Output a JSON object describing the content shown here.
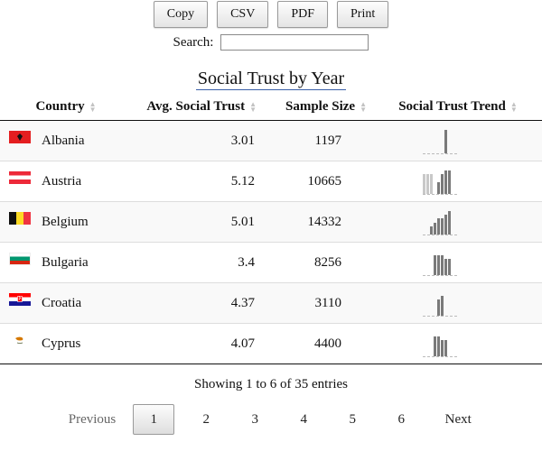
{
  "toolbar": {
    "copy": "Copy",
    "csv": "CSV",
    "pdf": "PDF",
    "print": "Print"
  },
  "search": {
    "label": "Search:",
    "value": ""
  },
  "table": {
    "caption": "Social Trust by Year",
    "headers": [
      "Country",
      "Avg. Social Trust",
      "Sample Size",
      "Social Trust Trend"
    ],
    "rows": [
      {
        "country": "Albania",
        "flag": "albania-flag",
        "avg": "3.01",
        "sample": "1197",
        "trend": [
          0,
          0,
          0,
          0,
          0,
          0,
          6,
          0
        ],
        "light": []
      },
      {
        "country": "Austria",
        "flag": "austria-flag",
        "avg": "5.12",
        "sample": "10665",
        "trend": [
          5,
          5,
          5,
          0,
          3,
          5,
          6,
          6
        ],
        "light": [
          0,
          1,
          2
        ]
      },
      {
        "country": "Belgium",
        "flag": "belgium-flag",
        "avg": "5.01",
        "sample": "14332",
        "trend": [
          0,
          0,
          2,
          3,
          4,
          4,
          5,
          6
        ],
        "light": []
      },
      {
        "country": "Bulgaria",
        "flag": "bulgaria-flag",
        "avg": "3.4",
        "sample": "8256",
        "trend": [
          0,
          0,
          0,
          5,
          5,
          5,
          4,
          4
        ],
        "light": []
      },
      {
        "country": "Croatia",
        "flag": "croatia-flag",
        "avg": "4.37",
        "sample": "3110",
        "trend": [
          0,
          0,
          0,
          0,
          4,
          5,
          0,
          0
        ],
        "light": []
      },
      {
        "country": "Cyprus",
        "flag": "cyprus-flag",
        "avg": "4.07",
        "sample": "4400",
        "trend": [
          0,
          0,
          0,
          5,
          5,
          4,
          4,
          0
        ],
        "light": []
      }
    ]
  },
  "info": "Showing 1 to 6 of 35 entries",
  "pagination": {
    "previous": "Previous",
    "pages": [
      "1",
      "2",
      "3",
      "4",
      "5",
      "6"
    ],
    "current": "1",
    "next": "Next"
  }
}
